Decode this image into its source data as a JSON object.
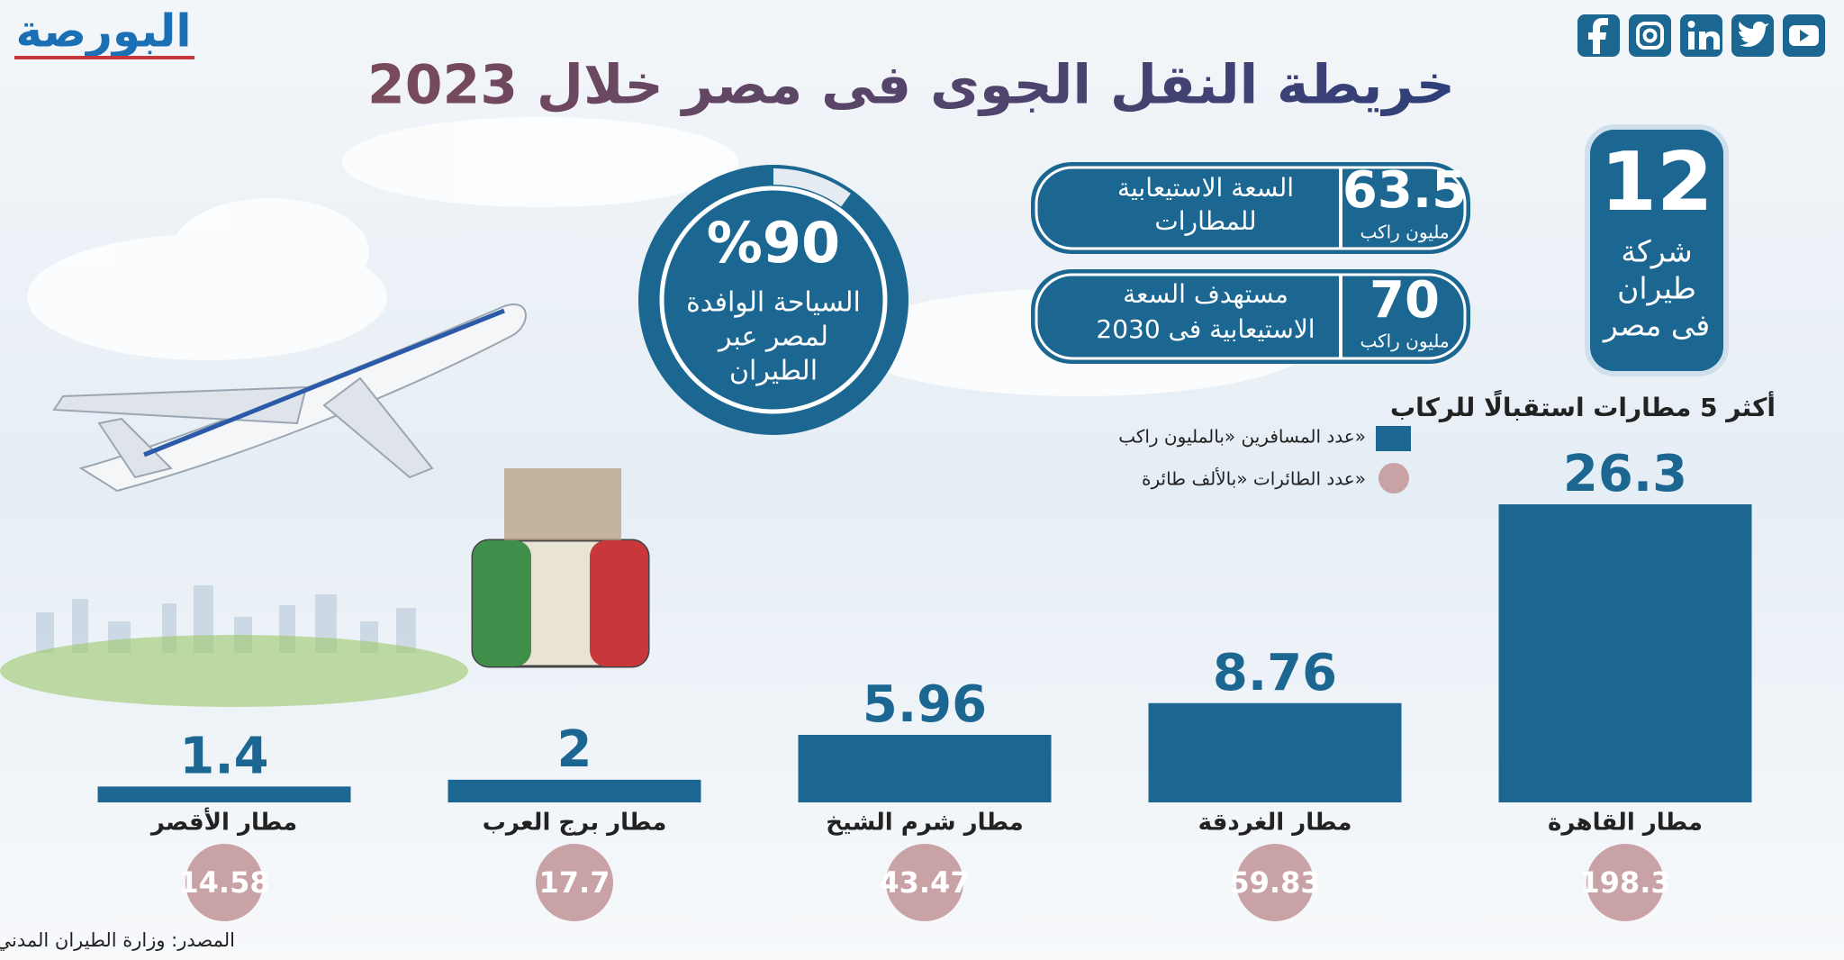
{
  "logo": "البورصة",
  "title": "خريطة النقل الجوى فى مصر خلال 2023",
  "stats": {
    "airlines": {
      "value": 12,
      "lines": [
        "شركة",
        "طيران",
        "فى مصر"
      ]
    },
    "capacity": {
      "value": 63.5,
      "unit": "مليون راكب",
      "lines": [
        "السعة الاستيعابية",
        "للمطارات"
      ]
    },
    "target": {
      "value": 70,
      "unit": "مليون راكب",
      "lines": [
        "مستهدف السعة",
        "الاستيعابية فى 2030"
      ]
    },
    "tourism": {
      "value": 90,
      "label": "%90",
      "lines": [
        "السياحة الوافدة",
        "لمصر عبر",
        "الطيران"
      ]
    }
  },
  "chart_data": {
    "type": "bar",
    "title": "أكثر 5 مطارات استقبالًا للركاب",
    "categories": [
      "مطار القاهرة",
      "مطار الغردقة",
      "مطار شرم الشيخ",
      "مطار برج العرب",
      "مطار الأقصر"
    ],
    "series": [
      {
        "name": "عدد المسافرين «بالمليون راكب»",
        "color": "#1b6792",
        "values": [
          26.3,
          8.76,
          5.96,
          2,
          1.4
        ]
      },
      {
        "name": "عدد الطائرات «بالألف طائرة»",
        "color": "#c9a2a6",
        "values": [
          198.3,
          59.83,
          43.47,
          17.7,
          14.58
        ]
      }
    ]
  },
  "source": "المصدر: وزارة الطيران المدني"
}
